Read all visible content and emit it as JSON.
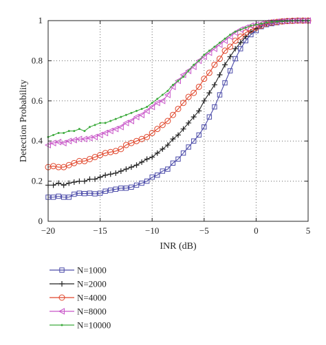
{
  "chart_data": {
    "type": "line",
    "xlabel": "INR (dB)",
    "ylabel": "Detection Probability",
    "xlim": [
      -20,
      5
    ],
    "ylim": [
      0,
      1
    ],
    "xticks": [
      "-20",
      "-15",
      "-10",
      "-5",
      "0",
      "5"
    ],
    "yticks": [
      "0",
      "0.2",
      "0.4",
      "0.6",
      "0.8",
      "1"
    ],
    "grid": true,
    "legend_position": "bottom",
    "x": [
      -20,
      -19.5,
      -19,
      -18.5,
      -18,
      -17.5,
      -17,
      -16.5,
      -16,
      -15.5,
      -15,
      -14.5,
      -14,
      -13.5,
      -13,
      -12.5,
      -12,
      -11.5,
      -11,
      -10.5,
      -10,
      -9.5,
      -9,
      -8.5,
      -8,
      -7.5,
      -7,
      -6.5,
      -6,
      -5.5,
      -5,
      -4.5,
      -4,
      -3.5,
      -3,
      -2.5,
      -2,
      -1.5,
      -1,
      -0.5,
      0,
      0.5,
      1,
      1.5,
      2,
      2.5,
      3,
      3.5,
      4,
      4.5,
      5
    ],
    "series": [
      {
        "name": "N=1000",
        "color": "#4a4aa8",
        "marker": "square",
        "values": [
          0.12,
          0.12,
          0.125,
          0.12,
          0.12,
          0.135,
          0.14,
          0.138,
          0.14,
          0.137,
          0.14,
          0.15,
          0.155,
          0.16,
          0.165,
          0.165,
          0.17,
          0.18,
          0.19,
          0.2,
          0.22,
          0.23,
          0.25,
          0.26,
          0.29,
          0.31,
          0.34,
          0.37,
          0.4,
          0.43,
          0.47,
          0.52,
          0.57,
          0.63,
          0.69,
          0.75,
          0.81,
          0.86,
          0.9,
          0.93,
          0.95,
          0.97,
          0.98,
          0.985,
          0.99,
          0.995,
          0.997,
          0.998,
          1.0,
          1.0,
          1.0
        ]
      },
      {
        "name": "N=2000",
        "color": "#222222",
        "marker": "plus",
        "values": [
          0.18,
          0.18,
          0.19,
          0.18,
          0.19,
          0.195,
          0.2,
          0.2,
          0.21,
          0.21,
          0.22,
          0.23,
          0.235,
          0.24,
          0.25,
          0.26,
          0.27,
          0.28,
          0.295,
          0.31,
          0.32,
          0.34,
          0.36,
          0.38,
          0.41,
          0.43,
          0.46,
          0.49,
          0.52,
          0.55,
          0.6,
          0.64,
          0.68,
          0.73,
          0.78,
          0.82,
          0.86,
          0.89,
          0.92,
          0.945,
          0.96,
          0.975,
          0.985,
          0.99,
          0.994,
          0.996,
          0.998,
          0.999,
          1.0,
          1.0,
          1.0
        ]
      },
      {
        "name": "N=4000",
        "color": "#e0452a",
        "marker": "circle",
        "values": [
          0.27,
          0.275,
          0.27,
          0.27,
          0.28,
          0.29,
          0.3,
          0.3,
          0.31,
          0.32,
          0.33,
          0.34,
          0.345,
          0.35,
          0.36,
          0.38,
          0.39,
          0.4,
          0.41,
          0.42,
          0.44,
          0.46,
          0.48,
          0.5,
          0.53,
          0.56,
          0.59,
          0.62,
          0.64,
          0.67,
          0.71,
          0.74,
          0.78,
          0.81,
          0.85,
          0.87,
          0.9,
          0.92,
          0.94,
          0.955,
          0.965,
          0.975,
          0.985,
          0.99,
          0.993,
          0.996,
          0.998,
          0.999,
          1.0,
          1.0,
          1.0
        ]
      },
      {
        "name": "N=8000",
        "color": "#c855c8",
        "marker": "triangle-left",
        "values": [
          0.38,
          0.39,
          0.395,
          0.39,
          0.4,
          0.405,
          0.41,
          0.41,
          0.415,
          0.42,
          0.43,
          0.44,
          0.45,
          0.46,
          0.47,
          0.49,
          0.5,
          0.52,
          0.53,
          0.55,
          0.57,
          0.59,
          0.6,
          0.63,
          0.67,
          0.7,
          0.73,
          0.75,
          0.77,
          0.8,
          0.82,
          0.84,
          0.86,
          0.88,
          0.9,
          0.92,
          0.94,
          0.955,
          0.965,
          0.975,
          0.98,
          0.985,
          0.99,
          0.993,
          0.995,
          0.997,
          0.998,
          0.999,
          1.0,
          1.0,
          1.0
        ]
      },
      {
        "name": "N=10000",
        "color": "#3caa3c",
        "marker": "dot",
        "values": [
          0.42,
          0.43,
          0.44,
          0.44,
          0.45,
          0.45,
          0.46,
          0.45,
          0.47,
          0.48,
          0.49,
          0.49,
          0.5,
          0.51,
          0.52,
          0.53,
          0.54,
          0.55,
          0.56,
          0.57,
          0.59,
          0.61,
          0.63,
          0.65,
          0.68,
          0.7,
          0.72,
          0.75,
          0.78,
          0.8,
          0.83,
          0.85,
          0.87,
          0.89,
          0.91,
          0.93,
          0.945,
          0.955,
          0.965,
          0.975,
          0.98,
          0.985,
          0.99,
          0.993,
          0.995,
          0.997,
          0.998,
          0.999,
          1.0,
          1.0,
          1.0
        ]
      }
    ]
  }
}
